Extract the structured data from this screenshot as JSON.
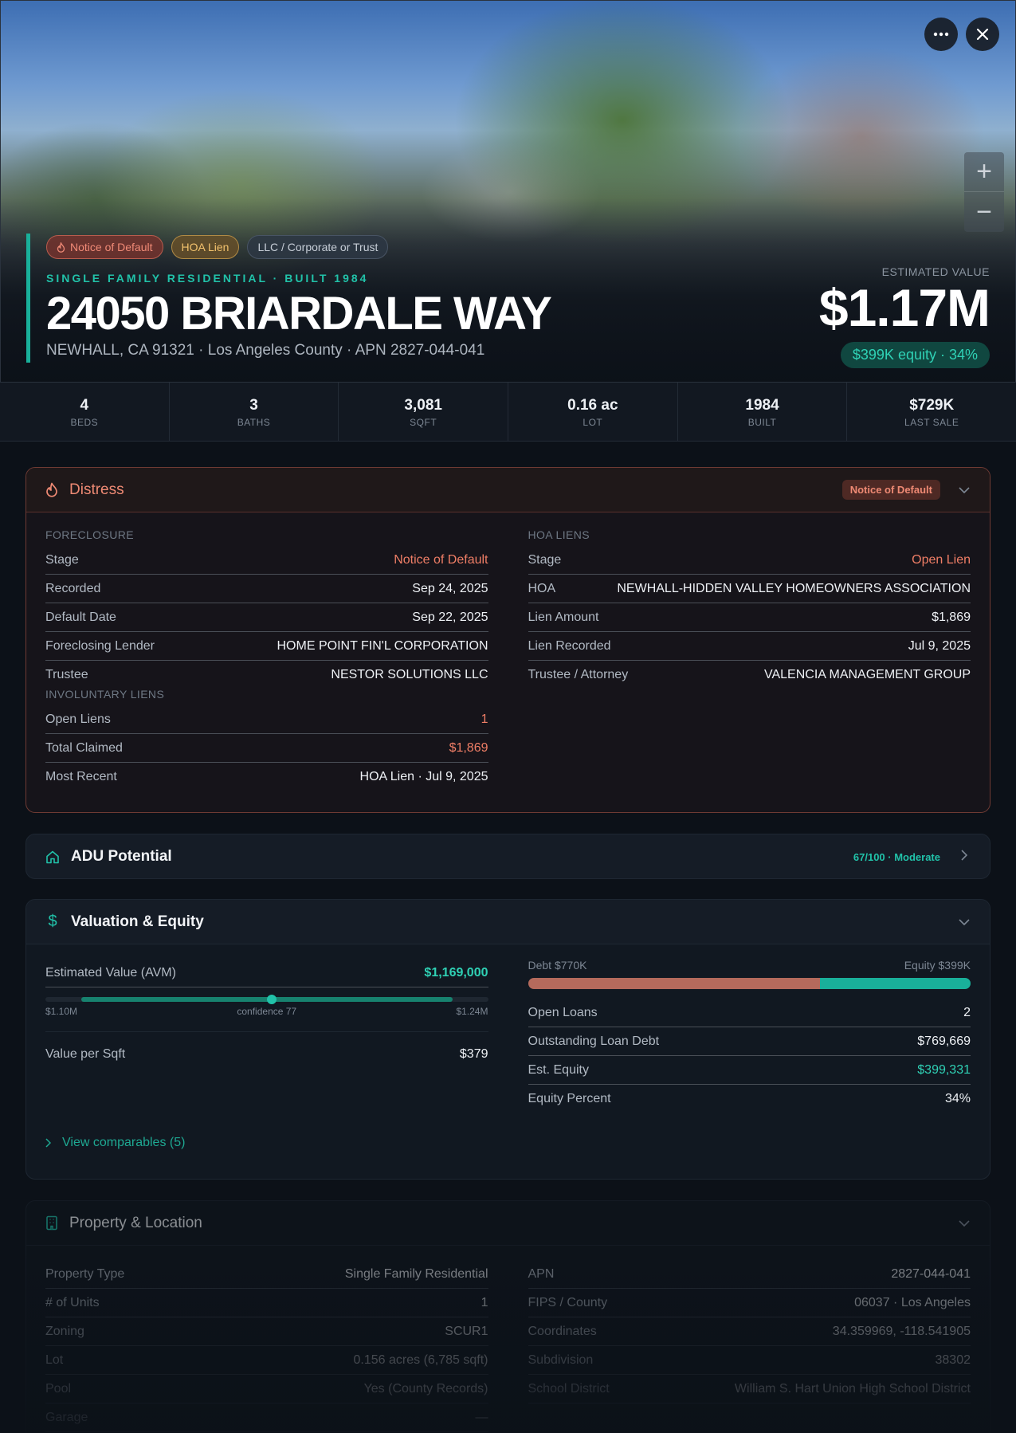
{
  "hero": {
    "tags": [
      "Notice of Default",
      "HOA Lien",
      "LLC / Corporate or Trust"
    ],
    "subtitle": "SINGLE FAMILY RESIDENTIAL · BUILT 1984",
    "address": "24050 BRIARDALE WAY",
    "location": "NEWHALL, CA 91321 · Los Angeles County · APN 2827-044-041",
    "estimated_label": "ESTIMATED VALUE",
    "estimated_value": "$1.17M",
    "equity_pill": "$399K equity · 34%"
  },
  "stats": [
    {
      "value": "4",
      "label": "BEDS"
    },
    {
      "value": "3",
      "label": "BATHS"
    },
    {
      "value": "3,081",
      "label": "SQFT"
    },
    {
      "value": "0.16 ac",
      "label": "LOT"
    },
    {
      "value": "1984",
      "label": "BUILT"
    },
    {
      "value": "$729K",
      "label": "LAST SALE"
    }
  ],
  "distress": {
    "title": "Distress",
    "badge": "Notice of Default",
    "foreclosure_label": "FORECLOSURE",
    "foreclosure": [
      {
        "k": "Stage",
        "v": "Notice of Default"
      },
      {
        "k": "Recorded",
        "v": "Sep 24, 2025"
      },
      {
        "k": "Default Date",
        "v": "Sep 22, 2025"
      },
      {
        "k": "Foreclosing Lender",
        "v": "HOME POINT FIN'L CORPORATION"
      },
      {
        "k": "Trustee",
        "v": "NESTOR SOLUTIONS LLC"
      }
    ],
    "involuntary_label": "INVOLUNTARY LIENS",
    "involuntary": [
      {
        "k": "Open Liens",
        "v": "1"
      },
      {
        "k": "Total Claimed",
        "v": "$1,869"
      },
      {
        "k": "Most Recent",
        "v": "HOA Lien · Jul 9, 2025"
      }
    ],
    "hoa_label": "HOA LIENS",
    "hoa": [
      {
        "k": "Stage",
        "v": "Open Lien"
      },
      {
        "k": "HOA",
        "v": "NEWHALL-HIDDEN VALLEY HOMEOWNERS ASSOCIATION"
      },
      {
        "k": "Lien Amount",
        "v": "$1,869"
      },
      {
        "k": "Lien Recorded",
        "v": "Jul 9, 2025"
      },
      {
        "k": "Trustee / Attorney",
        "v": "VALENCIA MANAGEMENT GROUP"
      }
    ]
  },
  "adu": {
    "title": "ADU Potential",
    "score": "67/100 · Moderate"
  },
  "valuation": {
    "title": "Valuation & Equity",
    "avm_label": "Estimated Value (AVM)",
    "avm_value": "$1,169,000",
    "range_low": "$1.10M",
    "confidence": "confidence 77",
    "range_high": "$1.24M",
    "value_per_sqft_label": "Value per Sqft",
    "value_per_sqft": "$379",
    "debt_label": "Debt $770K",
    "equity_label": "Equity $399K",
    "debt_fraction": 0.66,
    "rows": [
      {
        "k": "Open Loans",
        "v": "2"
      },
      {
        "k": "Outstanding Loan Debt",
        "v": "$769,669"
      },
      {
        "k": "Est. Equity",
        "v": "$399,331"
      },
      {
        "k": "Equity Percent",
        "v": "34%"
      }
    ],
    "comps_link": "View comparables (5)"
  },
  "property": {
    "title": "Property & Location",
    "left": [
      {
        "k": "Property Type",
        "v": "Single Family Residential"
      },
      {
        "k": "# of Units",
        "v": "1"
      },
      {
        "k": "Zoning",
        "v": "SCUR1"
      },
      {
        "k": "Lot",
        "v": "0.156 acres (6,785 sqft)"
      },
      {
        "k": "Pool",
        "v": "Yes (County Records)"
      },
      {
        "k": "Garage",
        "v": "—"
      }
    ],
    "right": [
      {
        "k": "APN",
        "v": "2827-044-041"
      },
      {
        "k": "FIPS / County",
        "v": "06037 · Los Angeles"
      },
      {
        "k": "Coordinates",
        "v": "34.359969, -118.541905"
      },
      {
        "k": "Subdivision",
        "v": "38302"
      },
      {
        "k": "School District",
        "v": "William S. Hart Union High School District"
      }
    ]
  },
  "colors": {
    "accent": "#19b09a",
    "distress": "#ef8a74",
    "debt": "#b56a5c"
  }
}
